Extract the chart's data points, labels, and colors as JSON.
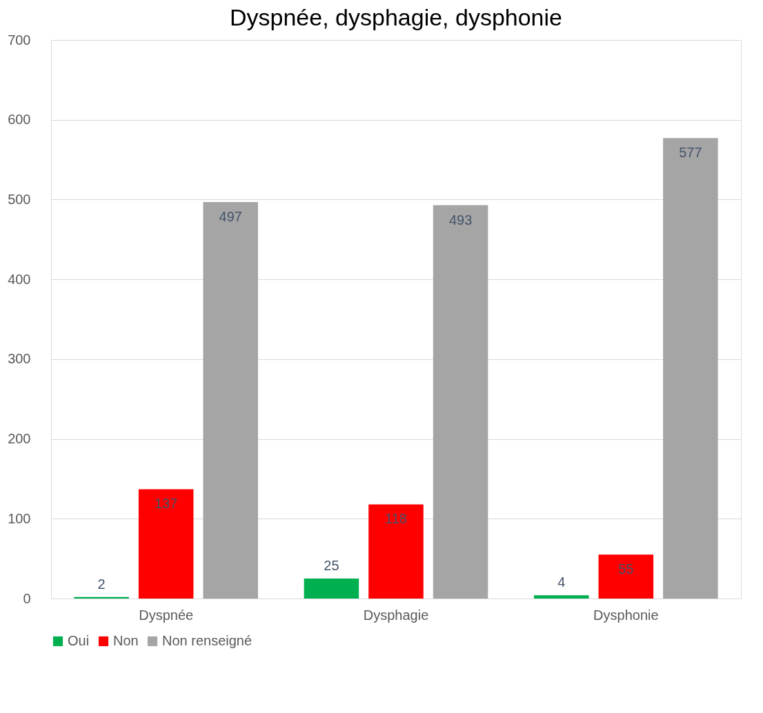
{
  "chart_data": {
    "type": "bar",
    "title": "Dyspnée, dysphagie, dysphonie",
    "categories": [
      "Dyspnée",
      "Dysphagie",
      "Dysphonie"
    ],
    "series": [
      {
        "name": "Oui",
        "color": "#00b050",
        "values": [
          2,
          25,
          4
        ]
      },
      {
        "name": "Non",
        "color": "#ff0000",
        "values": [
          137,
          118,
          55
        ]
      },
      {
        "name": "Non renseigné",
        "color": "#a5a5a5",
        "values": [
          497,
          493,
          577
        ]
      }
    ],
    "ylim": [
      0,
      700
    ],
    "yticks": [
      0,
      100,
      200,
      300,
      400,
      500,
      600,
      700
    ],
    "grid": "y",
    "legend": "bottom",
    "data_labels": true
  }
}
